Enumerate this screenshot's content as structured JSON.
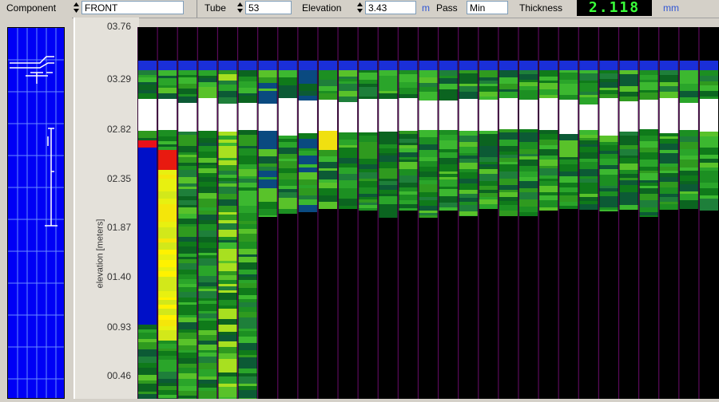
{
  "toolbar": {
    "component_label": "Component",
    "component_value": "FRONT",
    "tube_label": "Tube",
    "tube_value": "53",
    "elevation_label": "Elevation",
    "elevation_value": "3.43",
    "elevation_unit": "m",
    "pass_label": "Pass",
    "pass_value": "Min",
    "thickness_label": "Thickness",
    "thickness_value": "2.118",
    "thickness_unit": "mm"
  },
  "axis": {
    "ylabel": "elevation [meters]",
    "ticks": [
      "03.76",
      "03.29",
      "02.82",
      "02.35",
      "01.87",
      "01.40",
      "00.93",
      "00.46"
    ]
  },
  "colors": {
    "background": "#000000",
    "toolbar": "#d4d0c8",
    "lcd_text": "#39ff39",
    "overview_panel": "#0000f5",
    "column_divider": "#5a0a5a"
  },
  "heatmap": {
    "columns": 29,
    "column_profiles": [
      "dark-blue",
      "red-yellow",
      "green",
      "green",
      "green-yellow",
      "green",
      "blue-green",
      "green",
      "blue-green",
      "yellow-green",
      "green",
      "green",
      "green",
      "green",
      "green",
      "green",
      "green",
      "green",
      "green",
      "green",
      "green",
      "green",
      "green",
      "green",
      "green",
      "green",
      "green",
      "green",
      "green"
    ]
  }
}
